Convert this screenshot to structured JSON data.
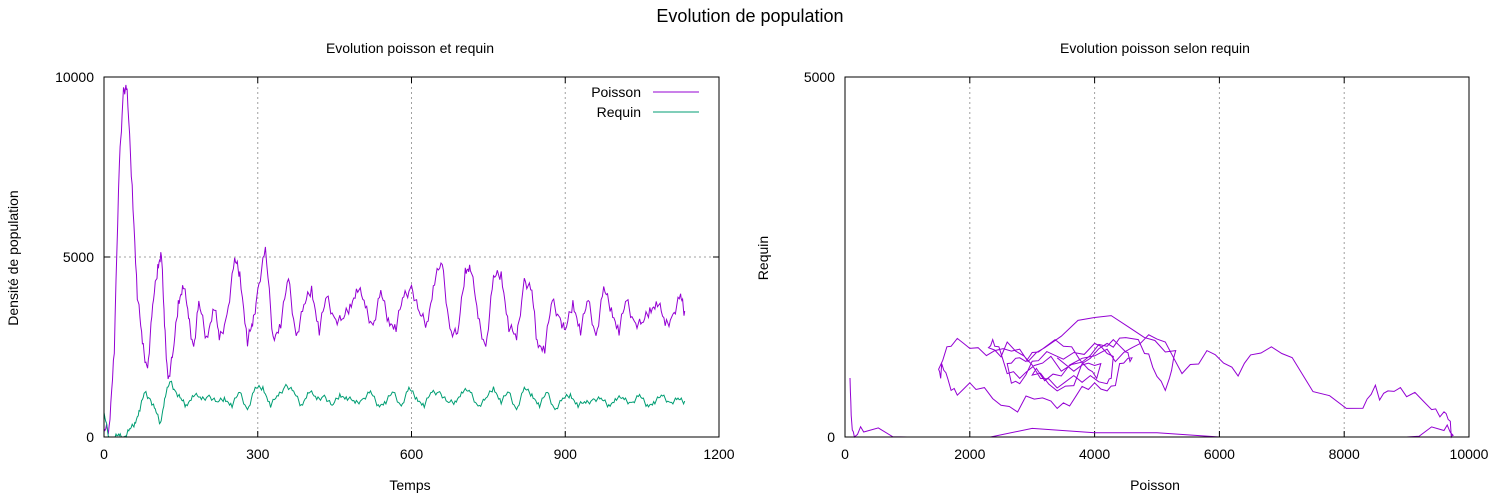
{
  "figure": {
    "title": "Evolution de population"
  },
  "chart_data": [
    {
      "type": "line",
      "title": "Evolution poisson et requin",
      "xlabel": "Temps",
      "ylabel": "Densité de population",
      "xlim": [
        0,
        1200
      ],
      "ylim": [
        0,
        10000
      ],
      "xticks": [
        0,
        300,
        600,
        900,
        1200
      ],
      "yticks": [
        0,
        5000,
        10000
      ],
      "grid": true,
      "legend_position": "top-right",
      "series": [
        {
          "name": "Poisson",
          "color": "#9400d3",
          "x": [
            0,
            10,
            20,
            30,
            38,
            45,
            55,
            65,
            75,
            85,
            95,
            105,
            112,
            118,
            125,
            135,
            145,
            155,
            165,
            175,
            185,
            200,
            215,
            225,
            240,
            255,
            265,
            280,
            290,
            300,
            315,
            330,
            345,
            360,
            375,
            390,
            405,
            420,
            435,
            450,
            465,
            480,
            495,
            510,
            525,
            540,
            555,
            570,
            585,
            600,
            615,
            630,
            645,
            660,
            675,
            690,
            705,
            715,
            730,
            745,
            760,
            775,
            790,
            805,
            820,
            835,
            845,
            860,
            875,
            890,
            900,
            915,
            930,
            945,
            960,
            975,
            990,
            1005,
            1020,
            1035,
            1050,
            1065,
            1080,
            1095,
            1110,
            1125,
            1133
          ],
          "y": [
            50,
            300,
            2500,
            7500,
            9800,
            9500,
            7000,
            4000,
            2500,
            2000,
            3500,
            4800,
            5200,
            3000,
            1700,
            2200,
            3800,
            4300,
            3200,
            2600,
            3600,
            2800,
            3700,
            2600,
            3500,
            4800,
            4600,
            2700,
            3000,
            4200,
            5100,
            2800,
            3200,
            4300,
            2900,
            3500,
            4200,
            3000,
            3800,
            3400,
            3100,
            3700,
            4200,
            3500,
            3200,
            3900,
            3300,
            3100,
            3800,
            4300,
            3300,
            3200,
            4400,
            4700,
            3100,
            2700,
            4700,
            4800,
            3200,
            2600,
            4300,
            4600,
            3100,
            2600,
            4500,
            3900,
            2700,
            2500,
            3700,
            3400,
            2800,
            3800,
            3000,
            3700,
            2900,
            4000,
            3600,
            3000,
            3700,
            3300,
            3000,
            3600,
            3800,
            3000,
            3500,
            3800,
            3500
          ]
        },
        {
          "name": "Requin",
          "color": "#009e73",
          "x": [
            0,
            10,
            20,
            30,
            40,
            50,
            60,
            70,
            80,
            90,
            100,
            110,
            120,
            130,
            140,
            150,
            160,
            175,
            190,
            205,
            220,
            235,
            250,
            265,
            280,
            295,
            310,
            325,
            340,
            355,
            370,
            385,
            400,
            415,
            430,
            445,
            460,
            475,
            490,
            505,
            520,
            535,
            550,
            565,
            580,
            595,
            610,
            625,
            640,
            655,
            670,
            685,
            700,
            715,
            730,
            745,
            760,
            775,
            790,
            805,
            820,
            835,
            850,
            865,
            880,
            895,
            910,
            925,
            940,
            955,
            970,
            985,
            1000,
            1015,
            1030,
            1045,
            1060,
            1075,
            1090,
            1105,
            1120,
            1133
          ],
          "y": [
            600,
            0,
            0,
            0,
            50,
            150,
            400,
            800,
            1200,
            1100,
            700,
            400,
            1200,
            1500,
            1300,
            1000,
            900,
            1200,
            1000,
            1200,
            900,
            1100,
            900,
            1200,
            800,
            1300,
            1400,
            900,
            1100,
            1500,
            1200,
            900,
            1300,
            1000,
            1200,
            800,
            1200,
            1100,
            900,
            1100,
            1200,
            900,
            1000,
            1200,
            900,
            1300,
            1100,
            900,
            1200,
            1300,
            900,
            1000,
            1300,
            1200,
            900,
            1000,
            1400,
            1000,
            1200,
            800,
            1300,
            1200,
            900,
            1200,
            800,
            1000,
            1200,
            900,
            900,
            1100,
            1000,
            900,
            1100,
            1000,
            1000,
            1100,
            900,
            1000,
            1100,
            1000,
            1000,
            1000
          ]
        }
      ]
    },
    {
      "type": "line",
      "title": "Evolution poisson selon requin",
      "xlabel": "Poisson",
      "ylabel": "Requin",
      "xlim": [
        0,
        10000
      ],
      "ylim": [
        0,
        5000
      ],
      "xticks": [
        0,
        2000,
        4000,
        6000,
        8000,
        10000
      ],
      "yticks": [
        0,
        5000
      ],
      "grid": "x",
      "series": [
        {
          "name": "",
          "color": "#9400d3",
          "x": [
            80,
            100,
            150,
            300,
            1000,
            3000,
            6000,
            9000,
            9600,
            9750,
            9700,
            9600,
            9400,
            9000,
            8700,
            8500,
            8300,
            7500,
            7000,
            6500,
            6200,
            5800,
            5400,
            5000,
            4600,
            4200,
            3600,
            3200,
            3000,
            3400,
            3800,
            4200,
            4500,
            4800,
            5000,
            5200,
            5300,
            4800,
            4000,
            3200,
            2800,
            2400,
            2000,
            1700,
            1500,
            1550,
            1650,
            1800,
            2100,
            2500,
            2900,
            3300,
            3600,
            3900,
            4200,
            4400,
            4600,
            4500,
            4200,
            3800,
            3300,
            2900,
            2600,
            2400,
            2300,
            2600,
            3000,
            3400,
            3800,
            4200,
            4300,
            4000,
            3500,
            3100,
            2800,
            2600,
            2800,
            3100,
            3500,
            3900,
            4100,
            3800,
            3400
          ],
          "y": [
            700,
            300,
            50,
            10,
            0,
            0,
            0,
            0,
            30,
            80,
            100,
            350,
            500,
            500,
            700,
            600,
            400,
            750,
            1100,
            1200,
            850,
            1200,
            1000,
            1300,
            1300,
            1100,
            1000,
            900,
            800,
            700,
            900,
            1300,
            1500,
            1100,
            900,
            700,
            1200,
            1500,
            1600,
            1300,
            1100,
            1200,
            1350,
            1200,
            1000,
            900,
            800,
            700,
            600,
            500,
            450,
            500,
            550,
            600,
            700,
            900,
            1100,
            1300,
            1200,
            1100,
            1000,
            900,
            1000,
            1200,
            1300,
            1200,
            1000,
            800,
            700,
            800,
            1000,
            1300,
            1200,
            1000,
            800,
            900,
            1100,
            1300,
            1200,
            1000,
            900,
            1000,
            1100
          ]
        }
      ]
    }
  ]
}
